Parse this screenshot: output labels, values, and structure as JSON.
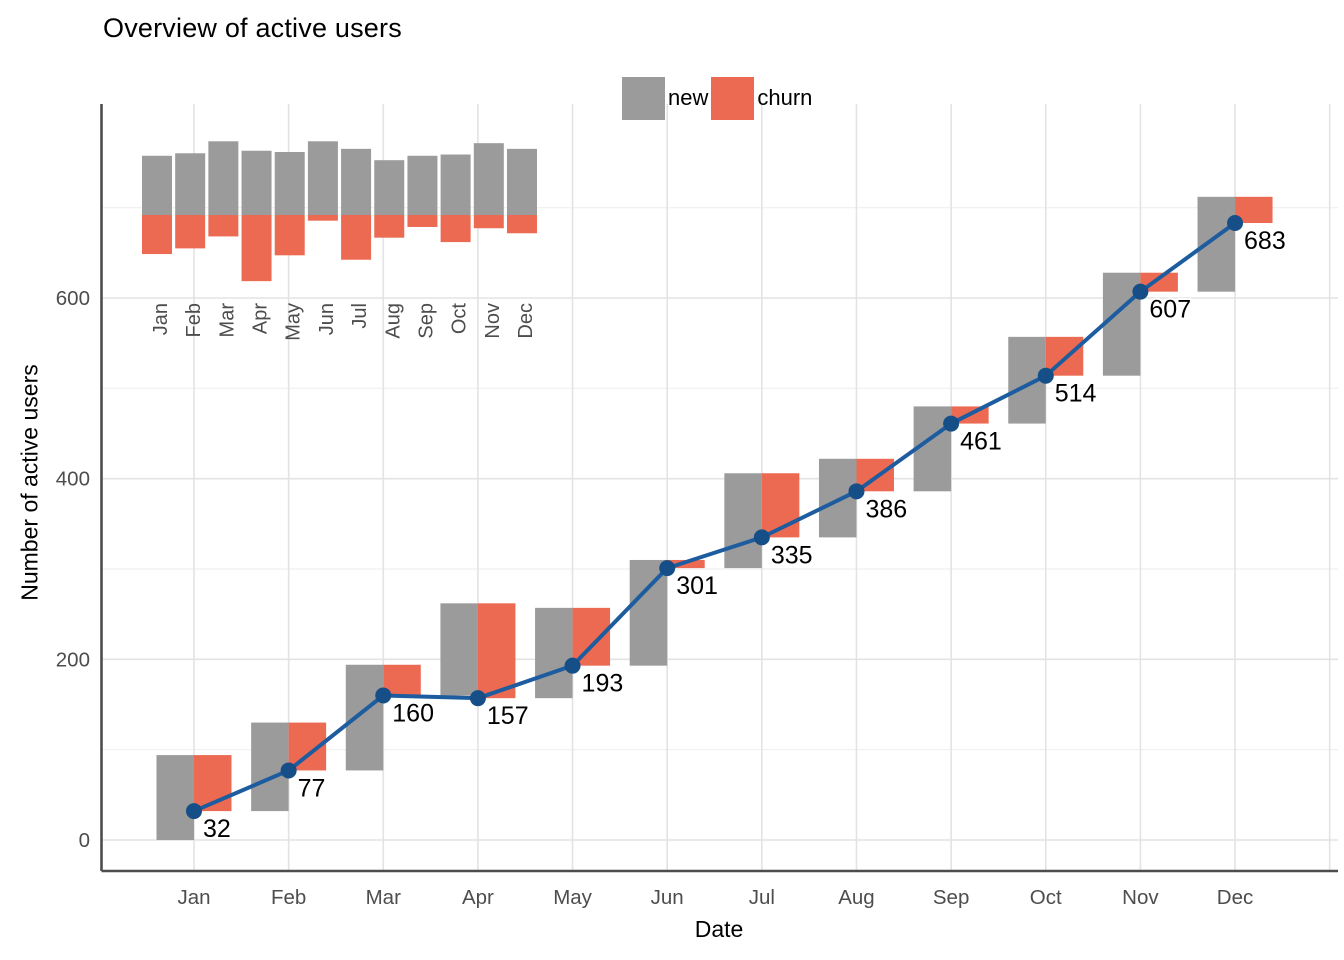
{
  "title": "Overview of active users",
  "legend": {
    "items": [
      {
        "label": "new",
        "color": "#9B9B9B"
      },
      {
        "label": "churn",
        "color": "#EC6A52"
      }
    ]
  },
  "axes": {
    "x_title": "Date",
    "y_title": "Number of active users"
  },
  "chart_data": {
    "type": "bar",
    "subtype": "monthly waterfall (new users up / churned users down) with cumulative active-users line and labeled points",
    "title": "Overview of active users",
    "xlabel": "Date",
    "ylabel": "Number of active users",
    "categories": [
      "Jan",
      "Feb",
      "Mar",
      "Apr",
      "May",
      "Jun",
      "Jul",
      "Aug",
      "Sep",
      "Oct",
      "Nov",
      "Dec"
    ],
    "series": [
      {
        "name": "new",
        "type": "bar",
        "color": "#9B9B9B",
        "values": [
          94,
          98,
          117,
          102,
          100,
          117,
          105,
          87,
          94,
          96,
          114,
          105
        ]
      },
      {
        "name": "churn",
        "type": "bar",
        "color": "#EC6A52",
        "values": [
          62,
          53,
          34,
          105,
          64,
          9,
          71,
          36,
          19,
          43,
          21,
          29
        ]
      },
      {
        "name": "active users",
        "type": "line",
        "color": "#1D5C9E",
        "point_color": "#164E87",
        "values": [
          32,
          77,
          160,
          157,
          193,
          301,
          335,
          386,
          461,
          514,
          607,
          683
        ]
      }
    ],
    "point_labels": [
      "32",
      "77",
      "160",
      "157",
      "193",
      "301",
      "335",
      "386",
      "461",
      "514",
      "607",
      "683"
    ],
    "yticks": [
      0,
      200,
      400,
      600
    ],
    "ylim": [
      0,
      810
    ],
    "grid": true,
    "legend_position": "top-center",
    "legend_entries": [
      "new",
      "churn"
    ],
    "inset": {
      "type": "bar",
      "position": "top-left",
      "description": "diverging mini bar chart of the same monthly values: new above baseline, churn below",
      "categories": [
        "Jan",
        "Feb",
        "Mar",
        "Apr",
        "May",
        "Jun",
        "Jul",
        "Aug",
        "Sep",
        "Oct",
        "Nov",
        "Dec"
      ]
    }
  }
}
